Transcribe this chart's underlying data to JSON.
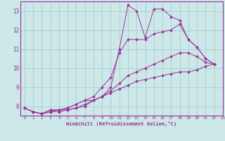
{
  "xlabel": "Windchill (Refroidissement éolien,°C)",
  "background_color": "#cce8e8",
  "grid_color": "#aacccc",
  "line_color": "#993399",
  "xlim": [
    -0.5,
    23
  ],
  "ylim": [
    7.5,
    13.5
  ],
  "xticks": [
    0,
    1,
    2,
    3,
    4,
    5,
    6,
    7,
    8,
    9,
    10,
    11,
    12,
    13,
    14,
    15,
    16,
    17,
    18,
    19,
    20,
    21,
    22,
    23
  ],
  "yticks": [
    8,
    9,
    10,
    11,
    12,
    13
  ],
  "lines": [
    {
      "x": [
        0,
        1,
        2,
        3,
        4,
        5,
        6,
        7,
        8,
        9,
        10,
        11,
        12,
        13,
        14,
        15,
        16,
        17,
        18,
        19,
        20,
        21,
        22
      ],
      "y": [
        7.9,
        7.7,
        7.6,
        7.8,
        7.8,
        7.9,
        8.1,
        8.3,
        8.3,
        8.5,
        9.0,
        11.0,
        13.3,
        13.0,
        11.6,
        13.1,
        13.1,
        12.7,
        12.5,
        11.5,
        11.1,
        10.5,
        10.2
      ]
    },
    {
      "x": [
        0,
        1,
        2,
        3,
        4,
        5,
        6,
        7,
        8,
        9,
        10,
        11,
        12,
        13,
        14,
        15,
        16,
        17,
        18,
        19,
        20,
        21,
        22
      ],
      "y": [
        7.9,
        7.7,
        7.6,
        7.8,
        7.8,
        7.9,
        8.1,
        8.3,
        8.5,
        9.0,
        9.5,
        10.8,
        11.5,
        11.5,
        11.5,
        11.8,
        11.9,
        12.0,
        12.3,
        11.5,
        11.1,
        10.5,
        10.2
      ]
    },
    {
      "x": [
        0,
        1,
        2,
        3,
        4,
        5,
        6,
        7,
        8,
        9,
        10,
        11,
        12,
        13,
        14,
        15,
        16,
        17,
        18,
        19,
        20,
        21,
        22
      ],
      "y": [
        7.9,
        7.7,
        7.6,
        7.7,
        7.8,
        7.8,
        7.9,
        8.0,
        8.3,
        8.5,
        8.8,
        9.2,
        9.6,
        9.8,
        10.0,
        10.2,
        10.4,
        10.6,
        10.8,
        10.8,
        10.6,
        10.3,
        10.2
      ]
    },
    {
      "x": [
        0,
        1,
        2,
        3,
        4,
        5,
        6,
        7,
        8,
        9,
        10,
        11,
        12,
        13,
        14,
        15,
        16,
        17,
        18,
        19,
        20,
        21,
        22
      ],
      "y": [
        7.9,
        7.7,
        7.6,
        7.7,
        7.7,
        7.8,
        7.9,
        8.1,
        8.3,
        8.5,
        8.7,
        8.9,
        9.1,
        9.3,
        9.4,
        9.5,
        9.6,
        9.7,
        9.8,
        9.8,
        9.9,
        10.1,
        10.2
      ]
    }
  ]
}
